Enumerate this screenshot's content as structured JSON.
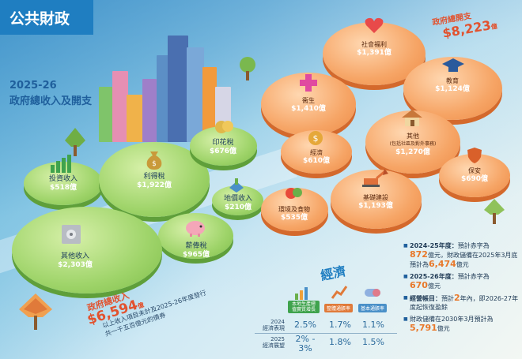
{
  "title": "公共財政",
  "heading": {
    "year": "2025-26",
    "main": "政府總收入及開支"
  },
  "total_expenditure": {
    "label": "政府總開支",
    "value": "$8,223",
    "unit": "億"
  },
  "total_revenue": {
    "label": "政府總收入",
    "value": "$6,594",
    "unit": "億"
  },
  "bond_note": {
    "line1": "以上收入項目未計及2025-26年度發行",
    "line2": "共一千五百億元的債券"
  },
  "revenue": [
    {
      "name": "投資收入",
      "value": "$518億"
    },
    {
      "name": "利得稅",
      "value": "$1,922億"
    },
    {
      "name": "印花稅",
      "value": "$676億"
    },
    {
      "name": "地價收入",
      "value": "$210億"
    },
    {
      "name": "薪俸稅",
      "value": "$965億"
    },
    {
      "name": "其他收入",
      "value": "$2,303億"
    }
  ],
  "expenditure": [
    {
      "name": "社會福利",
      "value": "$1,391億"
    },
    {
      "name": "教育",
      "value": "$1,124億"
    },
    {
      "name": "衞生",
      "value": "$1,410億"
    },
    {
      "name": "經濟",
      "value": "$610億"
    },
    {
      "name": "其他",
      "sub": "(包括社區及對外事務)",
      "value": "$1,270億"
    },
    {
      "name": "保安",
      "value": "$690億"
    },
    {
      "name": "環境及食物",
      "value": "$535億"
    },
    {
      "name": "基礎建設",
      "value": "$1,193億"
    }
  ],
  "economy": {
    "title": "經濟",
    "headers": [
      "本地生產總值實質增長",
      "整體通脹率",
      "基本通脹率"
    ],
    "rows": [
      {
        "label1": "2024",
        "label2": "經濟表現",
        "values": [
          "2.5%",
          "1.7%",
          "1.1%"
        ]
      },
      {
        "label1": "2025",
        "label2": "經濟展望",
        "values": [
          "2% -",
          "1.8%",
          "1.5%"
        ],
        "extra": "3%"
      }
    ]
  },
  "notes": [
    {
      "bold": "2024-25年度：",
      "t1": "預計赤字為",
      "h1": "872",
      "t2": "億元，財政儲備在2025年3月底預計為",
      "h2": "6,474",
      "t3": "億元"
    },
    {
      "bold": "2025-26年度：",
      "t1": "預計赤字為",
      "h1": "670",
      "t2": "億元",
      "h2": "",
      "t3": ""
    },
    {
      "bold": "經營帳目：",
      "t1": "預計",
      "h1": "2",
      "t2": "年內，即2026-27年度起恢復盈餘",
      "h2": "",
      "t3": ""
    },
    {
      "bold": "",
      "t1": "財政儲備在2030年3月預計為",
      "h1": "5,791",
      "t2": "億元",
      "h2": "",
      "t3": ""
    }
  ],
  "colors": {
    "accent_red": "#e2522e",
    "accent_blue": "#1f7ec1",
    "highlight_orange": "#e8782a"
  }
}
